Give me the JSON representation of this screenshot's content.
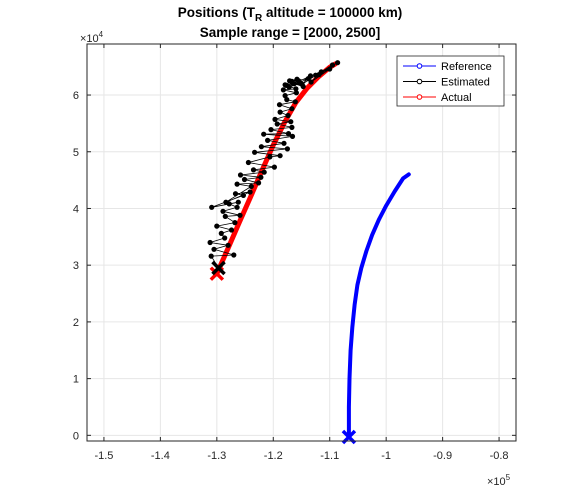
{
  "chart_data": {
    "type": "line",
    "title": {
      "prefix": "Positions (T",
      "subscript": "R",
      "suffix": " altitude = 100000 km)"
    },
    "subtitle": "Sample range = [2000, 2500]",
    "xlabel": "",
    "ylabel": "",
    "xlim": [
      -153000,
      -77000
    ],
    "ylim": [
      -1000,
      69000
    ],
    "x_ticks": [
      -150000,
      -140000,
      -130000,
      -120000,
      -110000,
      -100000,
      -90000,
      -80000
    ],
    "x_tick_labels": [
      "-1.5",
      "-1.4",
      "-1.3",
      "-1.2",
      "-1.1",
      "-1",
      "-0.9",
      "-0.8"
    ],
    "y_ticks": [
      0,
      10000,
      20000,
      30000,
      40000,
      50000,
      60000
    ],
    "y_tick_labels": [
      "0",
      "1",
      "2",
      "3",
      "4",
      "5",
      "6"
    ],
    "x_exponent": {
      "base": "×10",
      "power": "5"
    },
    "y_exponent": {
      "base": "×10",
      "power": "4"
    },
    "grid": true,
    "legend_position": "top-right",
    "series": [
      {
        "name": "Reference",
        "color": "#0000ff",
        "marker": "circle",
        "start_marker": "x",
        "x": [
          -106600,
          -106600,
          -106500,
          -106300,
          -106000,
          -105600,
          -105100,
          -104400,
          -103500,
          -102500,
          -101300,
          -100000,
          -98500,
          -97000,
          -96000
        ],
        "y": [
          -300,
          5000,
          10000,
          15000,
          19000,
          23000,
          26500,
          29500,
          32500,
          35300,
          38000,
          40500,
          43000,
          45300,
          46000
        ]
      },
      {
        "name": "Estimated",
        "color": "#000000",
        "marker": "circle",
        "start_marker": "x",
        "x": [
          -129700,
          -131000,
          -127000,
          -130500,
          -128000,
          -131200,
          -128600,
          -129200,
          -127400,
          -130000,
          -126800,
          -128500,
          -125900,
          -128900,
          -126400,
          -127800,
          -126200,
          -130900,
          -125300,
          -126700,
          -124100,
          -128400,
          -123900,
          -126400,
          -122600,
          -125100,
          -122200,
          -125800,
          -121600,
          -123500,
          -119800,
          -124400,
          -120600,
          -118800,
          -123300,
          -117500,
          -122100,
          -118100,
          -121000,
          -116600,
          -121700,
          -117300,
          -120400,
          -116700,
          -119300,
          -116900,
          -119700,
          -117400,
          -118800,
          -116700,
          -118900,
          -116100,
          -117600,
          -117900,
          -115900,
          -118200,
          -116000,
          -117700,
          -116600,
          -115500,
          -117100,
          -115800,
          -117900,
          -115200,
          -117200,
          -113800,
          -116700,
          -114700,
          -116300,
          -113400,
          -114900,
          -111500,
          -113300,
          -110000,
          -112500,
          -109500,
          -111900,
          -108600
        ],
        "y": [
          29500,
          31600,
          31800,
          32800,
          33500,
          34000,
          34800,
          35600,
          36200,
          36900,
          37500,
          38600,
          38800,
          39500,
          40200,
          40800,
          41100,
          40200,
          42300,
          42600,
          42900,
          41100,
          43900,
          44300,
          44500,
          45100,
          45500,
          45900,
          46400,
          46800,
          47300,
          48100,
          49100,
          49300,
          49900,
          50500,
          50900,
          51500,
          52000,
          52700,
          53100,
          53200,
          53900,
          54300,
          54900,
          55300,
          55700,
          56400,
          57000,
          57600,
          58300,
          58800,
          59200,
          59900,
          60400,
          60900,
          61100,
          61700,
          62100,
          62500,
          62500,
          62800,
          61800,
          62100,
          61400,
          62900,
          62400,
          61500,
          62000,
          63400,
          61900,
          64100,
          62300,
          64600,
          63500,
          65300,
          63600,
          65700
        ]
      },
      {
        "name": "Actual",
        "color": "#ff0000",
        "marker": "circle",
        "start_marker": "x",
        "x": [
          -130000,
          -128000,
          -126000,
          -124000,
          -122000,
          -120000,
          -118000,
          -116000,
          -114000,
          -112000,
          -110000,
          -109000
        ],
        "y": [
          28500,
          33000,
          37600,
          42100,
          46700,
          51200,
          55200,
          58700,
          61200,
          63200,
          64900,
          65500
        ]
      }
    ]
  }
}
